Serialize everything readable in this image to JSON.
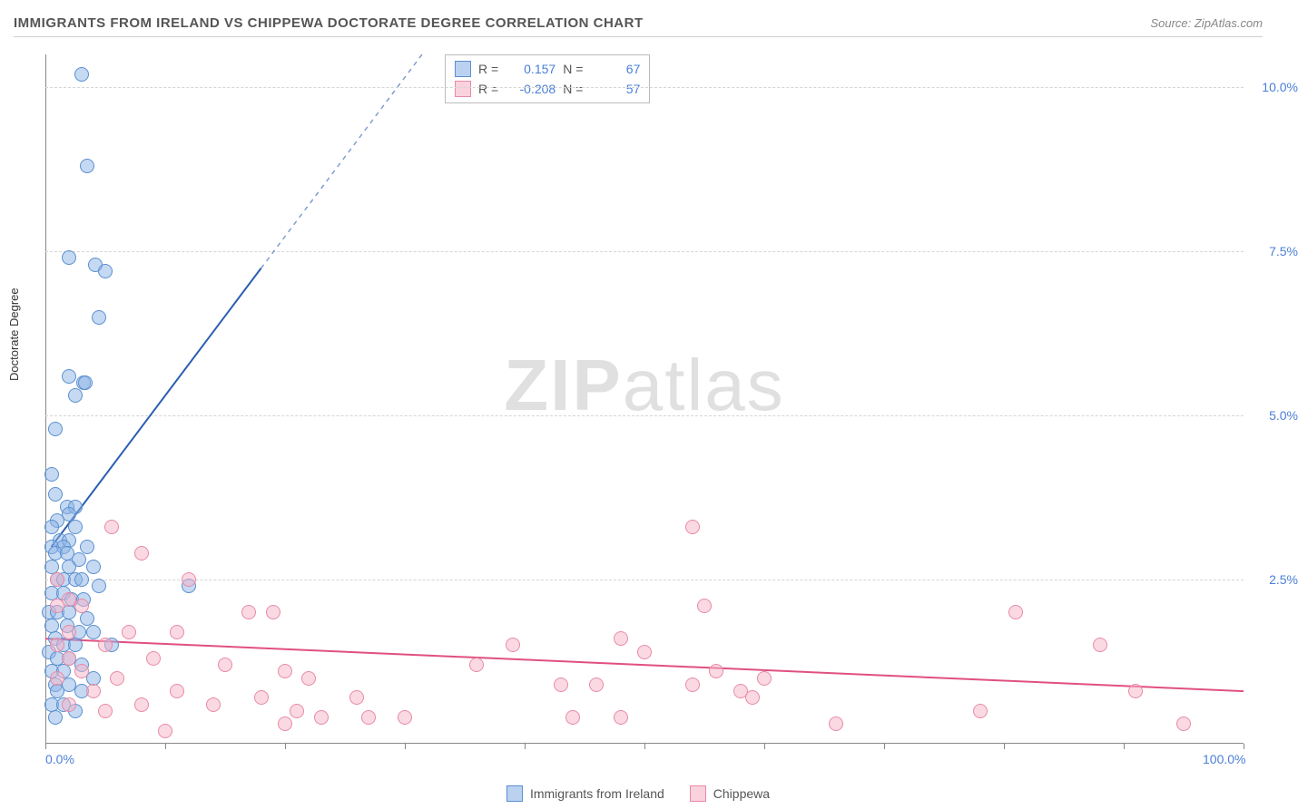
{
  "header": {
    "title": "IMMIGRANTS FROM IRELAND VS CHIPPEWA DOCTORATE DEGREE CORRELATION CHART",
    "source": "Source: ZipAtlas.com"
  },
  "watermark": {
    "zip": "ZIP",
    "atlas": "atlas"
  },
  "chart": {
    "type": "scatter",
    "ylabel": "Doctorate Degree",
    "xlim": [
      0,
      100
    ],
    "ylim": [
      0,
      10.5
    ],
    "xtick_positions": [
      0,
      10,
      20,
      30,
      40,
      50,
      60,
      70,
      80,
      90,
      100
    ],
    "xtick_labels": {
      "0": "0.0%",
      "100": "100.0%"
    },
    "ytick_positions": [
      2.5,
      5.0,
      7.5,
      10.0
    ],
    "ytick_labels": [
      "2.5%",
      "5.0%",
      "7.5%",
      "10.0%"
    ],
    "grid_color": "#d5d5d5",
    "background_color": "#ffffff",
    "series": [
      {
        "name": "Immigrants from Ireland",
        "color_fill": "rgba(140,180,230,0.5)",
        "color_stroke": "#5a8fd0",
        "R": "0.157",
        "N": "67",
        "trend": {
          "x1": 0.5,
          "y1": 3.0,
          "x2": 50,
          "y2": 15.0,
          "color": "#2b5fb0",
          "dash_from_x": 18
        },
        "points": [
          [
            3.0,
            10.2
          ],
          [
            3.5,
            8.8
          ],
          [
            4.2,
            7.3
          ],
          [
            5.0,
            7.2
          ],
          [
            4.5,
            6.5
          ],
          [
            2.0,
            7.4
          ],
          [
            2.0,
            5.6
          ],
          [
            3.2,
            5.5
          ],
          [
            3.3,
            5.5
          ],
          [
            2.5,
            5.3
          ],
          [
            0.8,
            4.8
          ],
          [
            0.5,
            4.1
          ],
          [
            0.8,
            3.8
          ],
          [
            1.8,
            3.6
          ],
          [
            2.5,
            3.6
          ],
          [
            2.0,
            3.5
          ],
          [
            1.0,
            3.4
          ],
          [
            0.5,
            3.3
          ],
          [
            2.5,
            3.3
          ],
          [
            1.2,
            3.1
          ],
          [
            2.0,
            3.1
          ],
          [
            0.5,
            3.0
          ],
          [
            1.5,
            3.0
          ],
          [
            3.5,
            3.0
          ],
          [
            0.8,
            2.9
          ],
          [
            1.8,
            2.9
          ],
          [
            2.8,
            2.8
          ],
          [
            0.5,
            2.7
          ],
          [
            2.0,
            2.7
          ],
          [
            4.0,
            2.7
          ],
          [
            1.0,
            2.5
          ],
          [
            1.5,
            2.5
          ],
          [
            2.5,
            2.5
          ],
          [
            3.0,
            2.5
          ],
          [
            4.5,
            2.4
          ],
          [
            12.0,
            2.4
          ],
          [
            0.5,
            2.3
          ],
          [
            1.5,
            2.3
          ],
          [
            2.2,
            2.2
          ],
          [
            3.2,
            2.2
          ],
          [
            0.3,
            2.0
          ],
          [
            1.0,
            2.0
          ],
          [
            2.0,
            2.0
          ],
          [
            3.5,
            1.9
          ],
          [
            0.5,
            1.8
          ],
          [
            1.8,
            1.8
          ],
          [
            2.8,
            1.7
          ],
          [
            4.0,
            1.7
          ],
          [
            0.8,
            1.6
          ],
          [
            1.5,
            1.5
          ],
          [
            2.5,
            1.5
          ],
          [
            5.5,
            1.5
          ],
          [
            0.3,
            1.4
          ],
          [
            1.0,
            1.3
          ],
          [
            2.0,
            1.3
          ],
          [
            3.0,
            1.2
          ],
          [
            0.5,
            1.1
          ],
          [
            1.5,
            1.1
          ],
          [
            4.0,
            1.0
          ],
          [
            0.8,
            0.9
          ],
          [
            2.0,
            0.9
          ],
          [
            1.0,
            0.8
          ],
          [
            3.0,
            0.8
          ],
          [
            0.5,
            0.6
          ],
          [
            1.5,
            0.6
          ],
          [
            2.5,
            0.5
          ],
          [
            0.8,
            0.4
          ]
        ]
      },
      {
        "name": "Chippewa",
        "color_fill": "rgba(245,180,200,0.5)",
        "color_stroke": "#e88aa5",
        "R": "-0.208",
        "N": "57",
        "trend": {
          "x1": 0,
          "y1": 1.6,
          "x2": 100,
          "y2": 0.8,
          "color": "#e05080"
        },
        "points": [
          [
            54.0,
            3.3
          ],
          [
            5.5,
            3.3
          ],
          [
            8.0,
            2.9
          ],
          [
            1.0,
            2.5
          ],
          [
            12.0,
            2.5
          ],
          [
            2.0,
            2.2
          ],
          [
            1.0,
            2.1
          ],
          [
            3.0,
            2.1
          ],
          [
            55.0,
            2.1
          ],
          [
            81.0,
            2.0
          ],
          [
            17.0,
            2.0
          ],
          [
            19.0,
            2.0
          ],
          [
            2.0,
            1.7
          ],
          [
            7.0,
            1.7
          ],
          [
            11.0,
            1.7
          ],
          [
            48.0,
            1.6
          ],
          [
            1.0,
            1.5
          ],
          [
            5.0,
            1.5
          ],
          [
            39.0,
            1.5
          ],
          [
            88.0,
            1.5
          ],
          [
            50.0,
            1.4
          ],
          [
            2.0,
            1.3
          ],
          [
            9.0,
            1.3
          ],
          [
            15.0,
            1.2
          ],
          [
            36.0,
            1.2
          ],
          [
            3.0,
            1.1
          ],
          [
            20.0,
            1.1
          ],
          [
            56.0,
            1.1
          ],
          [
            60.0,
            1.0
          ],
          [
            1.0,
            1.0
          ],
          [
            6.0,
            1.0
          ],
          [
            22.0,
            1.0
          ],
          [
            43.0,
            0.9
          ],
          [
            46.0,
            0.9
          ],
          [
            54.0,
            0.9
          ],
          [
            58.0,
            0.8
          ],
          [
            91.0,
            0.8
          ],
          [
            4.0,
            0.8
          ],
          [
            11.0,
            0.8
          ],
          [
            18.0,
            0.7
          ],
          [
            26.0,
            0.7
          ],
          [
            59.0,
            0.7
          ],
          [
            2.0,
            0.6
          ],
          [
            8.0,
            0.6
          ],
          [
            14.0,
            0.6
          ],
          [
            21.0,
            0.5
          ],
          [
            78.0,
            0.5
          ],
          [
            5.0,
            0.5
          ],
          [
            23.0,
            0.4
          ],
          [
            27.0,
            0.4
          ],
          [
            30.0,
            0.4
          ],
          [
            44.0,
            0.4
          ],
          [
            48.0,
            0.4
          ],
          [
            66.0,
            0.3
          ],
          [
            95.0,
            0.3
          ],
          [
            20.0,
            0.3
          ],
          [
            10.0,
            0.2
          ]
        ]
      }
    ],
    "legend": {
      "stats_labels": {
        "R": "R =",
        "N": "N ="
      },
      "bottom_items": [
        "Immigrants from Ireland",
        "Chippewa"
      ]
    }
  }
}
